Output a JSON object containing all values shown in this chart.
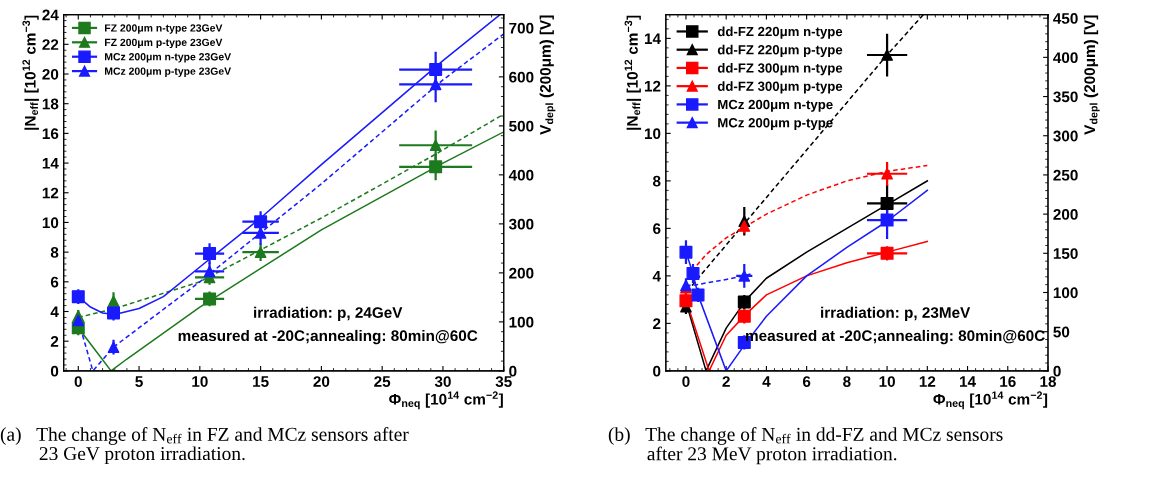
{
  "chart_data": [
    {
      "type": "scatter",
      "title": "(a)   The change of N$_{eff}$ in FZ and MCz sensors after\n        23 GeV proton irradiation.",
      "xlabel": "Φ$_{neq}$ [10$^{14}$ cm$^{−2}$]",
      "ylabel": "|N$_{eff}$| [10$^{12}$ cm$^{−3}$]",
      "y2label": "V$_{depl}$ (200μm) [V]",
      "annotations": [
        "irradiation: p, 24GeV",
        "measured at -20C;annealing: 80min@60C"
      ],
      "xlim": [
        -1.2,
        35
      ],
      "xticks": [
        0,
        5,
        10,
        15,
        20,
        25,
        30,
        35
      ],
      "ylim": [
        0,
        24
      ],
      "yticks": [
        0,
        2,
        4,
        6,
        8,
        10,
        12,
        14,
        16,
        18,
        20,
        22,
        24
      ],
      "y2lim": [
        0,
        727
      ],
      "y2ticks": [
        0,
        100,
        200,
        300,
        400,
        500,
        600,
        700
      ],
      "legend": "top left",
      "grid": false,
      "series": [
        {
          "type": "line",
          "color": "#1e7a1e",
          "line_style": "solid",
          "marker": "none",
          "x": [
            0,
            2.7,
            4,
            10,
            20,
            30,
            35
          ],
          "values": [
            2.9,
            0,
            0.8,
            4.3,
            9.5,
            14.0,
            16.1
          ]
        },
        {
          "type": "line",
          "color": "#1e7a1e",
          "line_style": "dashed",
          "marker": "none",
          "x": [
            0,
            3,
            10,
            20,
            29.4,
            35
          ],
          "values": [
            3.6,
            4.2,
            6.0,
            10.3,
            14.6,
            17.3
          ]
        },
        {
          "type": "line",
          "color": "#1a1aff",
          "line_style": "solid",
          "marker": "none",
          "x": [
            0,
            1,
            2,
            3,
            5,
            7,
            10,
            15,
            20,
            30,
            34.7
          ],
          "values": [
            5.0,
            4.3,
            3.9,
            3.8,
            4.2,
            5.0,
            7.0,
            10.3,
            13.9,
            20.9,
            24
          ]
        },
        {
          "type": "line",
          "color": "#1a1aff",
          "line_style": "dashed",
          "marker": "none",
          "x": [
            0,
            1.2,
            2.9,
            10,
            15,
            20,
            30,
            35
          ],
          "values": [
            3.4,
            0,
            1.6,
            6.0,
            9.3,
            12.6,
            19.6,
            22.7
          ]
        },
        {
          "name": "FZ 200μm n-type 23GeV",
          "color": "#1e7a1e",
          "marker": "square",
          "x": [
            0,
            10.8,
            29.4
          ],
          "values": [
            2.9,
            4.85,
            13.75
          ],
          "errors": [
            0.5,
            0.5,
            0.9
          ],
          "xerrors": [
            null,
            1.2,
            3
          ]
        },
        {
          "name": "FZ 200μm p-type 23GeV",
          "color": "#1e7a1e",
          "marker": "triangle",
          "x": [
            0,
            2.9,
            10.8,
            15,
            29.4
          ],
          "values": [
            3.7,
            4.7,
            6.3,
            8.0,
            15.2
          ],
          "errors": [
            0.4,
            0.6,
            0.5,
            0.6,
            1.0
          ],
          "xerrors": [
            null,
            null,
            1.2,
            1.5,
            3
          ]
        },
        {
          "name": "MCz 200μm n-type 23GeV",
          "color": "#1a1aff",
          "marker": "square",
          "x": [
            0,
            2.9,
            10.8,
            15,
            29.4
          ],
          "values": [
            5.0,
            3.9,
            7.9,
            10.05,
            20.3
          ],
          "errors": [
            0.5,
            0.5,
            0.7,
            0.7,
            1.2
          ],
          "xerrors": [
            null,
            null,
            1.2,
            1.5,
            3
          ]
        },
        {
          "name": "MCz 200μm p-type 23GeV",
          "color": "#1a1aff",
          "marker": "triangle",
          "x": [
            0,
            2.9,
            10.8,
            15,
            29.4
          ],
          "values": [
            3.4,
            1.6,
            6.7,
            9.3,
            19.3
          ],
          "errors": [
            0.4,
            0.5,
            0.6,
            0.8,
            1.2
          ],
          "xerrors": [
            null,
            null,
            1.2,
            1.5,
            3
          ]
        }
      ]
    },
    {
      "type": "scatter",
      "title": "(b)   The change of N$_{eff}$ in dd-FZ and MCz sensors\n        after 23 MeV proton irradiation.",
      "xlabel": "Φ$_{neq}$ [10$^{14}$ cm$^{−2}$]",
      "ylabel": "|N$_{eff}$| [10$^{12}$ cm$^{−3}$]",
      "y2label": "V$_{depl}$ (200μm) [V]",
      "annotations": [
        "irradiation: p, 23MeV",
        "measured at -20C;annealing: 80min@60C"
      ],
      "xlim": [
        -1,
        18
      ],
      "xticks": [
        0,
        2,
        4,
        6,
        8,
        10,
        12,
        14,
        16,
        18
      ],
      "ylim": [
        0,
        15
      ],
      "yticks": [
        0,
        2,
        4,
        6,
        8,
        10,
        12,
        14
      ],
      "y2lim": [
        0,
        454.5
      ],
      "y2ticks": [
        0,
        50,
        100,
        150,
        200,
        250,
        300,
        350,
        400,
        450
      ],
      "legend": "top left",
      "grid": false,
      "series": [
        {
          "type": "line",
          "color": "#000000",
          "line_style": "solid",
          "marker": "none",
          "x": [
            0,
            1.0,
            2,
            3,
            4,
            6,
            8,
            10,
            12
          ],
          "values": [
            2.9,
            0,
            1.8,
            3.0,
            3.9,
            5.0,
            6.0,
            7.0,
            8.0
          ]
        },
        {
          "type": "line",
          "color": "#000000",
          "line_style": "dashed",
          "marker": "none",
          "x": [
            0.3,
            2.9,
            10,
            11.8
          ],
          "values": [
            3.6,
            6.2,
            13.3,
            15
          ]
        },
        {
          "type": "line",
          "color": "#ff0000",
          "line_style": "solid",
          "marker": "none",
          "x": [
            0,
            1.15,
            2,
            3,
            4,
            6,
            8,
            10,
            12
          ],
          "values": [
            3.0,
            0,
            1.5,
            2.4,
            3.2,
            4.0,
            4.55,
            5.0,
            5.45
          ]
        },
        {
          "type": "line",
          "color": "#ff0000",
          "line_style": "dashed",
          "marker": "none",
          "x": [
            0.3,
            1,
            2,
            3,
            4,
            6,
            8,
            10,
            12
          ],
          "values": [
            4.2,
            4.9,
            5.6,
            6.1,
            6.6,
            7.4,
            8.0,
            8.4,
            8.65
          ]
        },
        {
          "type": "line",
          "color": "#1a1aff",
          "line_style": "solid",
          "marker": "none",
          "x": [
            0,
            0.35,
            0.6,
            2,
            3,
            4,
            6,
            8,
            10,
            12
          ],
          "values": [
            5.0,
            4.1,
            3.2,
            0,
            1.2,
            2.3,
            4.0,
            5.2,
            6.3,
            7.6
          ]
        },
        {
          "type": "line",
          "color": "#1a1aff",
          "line_style": "dashed",
          "marker": "none",
          "x": [
            0,
            0.35,
            1,
            2,
            2.9,
            3.3
          ],
          "values": [
            3.6,
            3.6,
            3.7,
            3.85,
            4.0,
            4.1
          ]
        },
        {
          "name": "dd-FZ 220μm n-type",
          "color": "#000000",
          "marker": "square",
          "x": [
            2.9,
            10
          ],
          "values": [
            2.9,
            7.05
          ],
          "errors": [
            0.3,
            0.8
          ],
          "xerrors": [
            null,
            1
          ]
        },
        {
          "name": "dd-FZ 220μm p-type",
          "color": "#000000",
          "marker": "triangle",
          "x": [
            0,
            2.9,
            10
          ],
          "values": [
            2.7,
            6.3,
            13.3
          ],
          "errors": [
            0.3,
            0.6,
            0.9
          ],
          "xerrors": [
            null,
            null,
            1
          ]
        },
        {
          "name": "dd-FZ 300μm n-type",
          "color": "#ff0000",
          "marker": "square",
          "x": [
            0,
            2.9,
            10
          ],
          "values": [
            2.95,
            2.3,
            4.95
          ],
          "errors": [
            0.3,
            0.3,
            0.3
          ],
          "xerrors": [
            null,
            null,
            1
          ]
        },
        {
          "name": "dd-FZ 300μm p-type",
          "color": "#ff0000",
          "marker": "triangle",
          "x": [
            0,
            2.9,
            10
          ],
          "values": [
            3.5,
            6.1,
            8.3
          ],
          "errors": [
            0.3,
            0.3,
            0.5
          ],
          "xerrors": [
            null,
            null,
            1
          ]
        },
        {
          "name": "MCz 200μm n-type",
          "color": "#1a1aff",
          "marker": "square",
          "x": [
            0,
            0.35,
            0.6,
            2.9,
            10
          ],
          "values": [
            5.0,
            4.1,
            3.2,
            1.2,
            6.35
          ],
          "errors": [
            0.5,
            0.4,
            0.3,
            0.3,
            0.8
          ],
          "xerrors": [
            null,
            null,
            null,
            null,
            1
          ]
        },
        {
          "name": "MCz 200μm p-type",
          "color": "#1a1aff",
          "marker": "triangle",
          "x": [
            0,
            2.9
          ],
          "values": [
            3.6,
            4.0
          ],
          "errors": [
            0.3,
            0.5
          ],
          "xerrors": [
            null,
            0.4
          ]
        }
      ]
    }
  ]
}
